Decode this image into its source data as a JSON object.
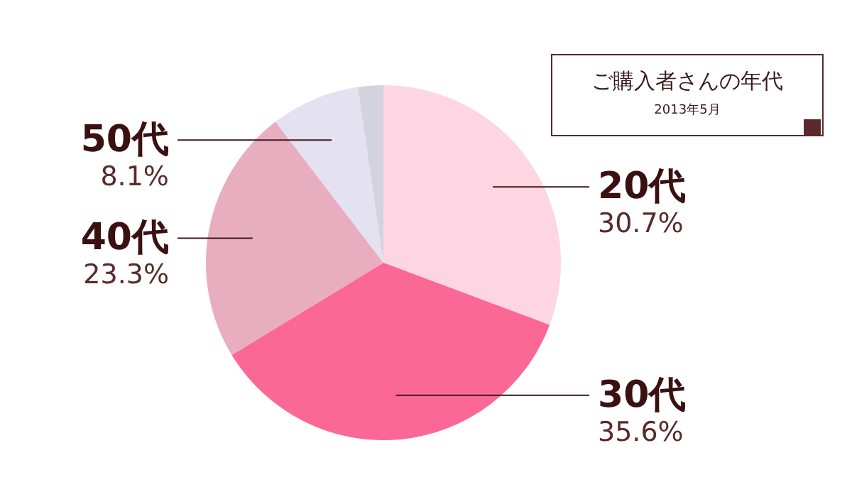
{
  "chart_data": {
    "type": "pie",
    "title": "ご購入者さんの年代",
    "subtitle": "2013年5月",
    "categories": [
      "20代",
      "30代",
      "40代",
      "50代",
      null
    ],
    "values": [
      30.7,
      35.6,
      23.3,
      8.1,
      2.3
    ],
    "colors": [
      "#fdd5e3",
      "#fb6895",
      "#e9adc0",
      "#e4e1f0",
      "#d3d3dd"
    ],
    "value_labels": [
      "30.7%",
      "35.6%",
      "23.3%",
      "8.1%",
      null
    ],
    "legend": false
  }
}
